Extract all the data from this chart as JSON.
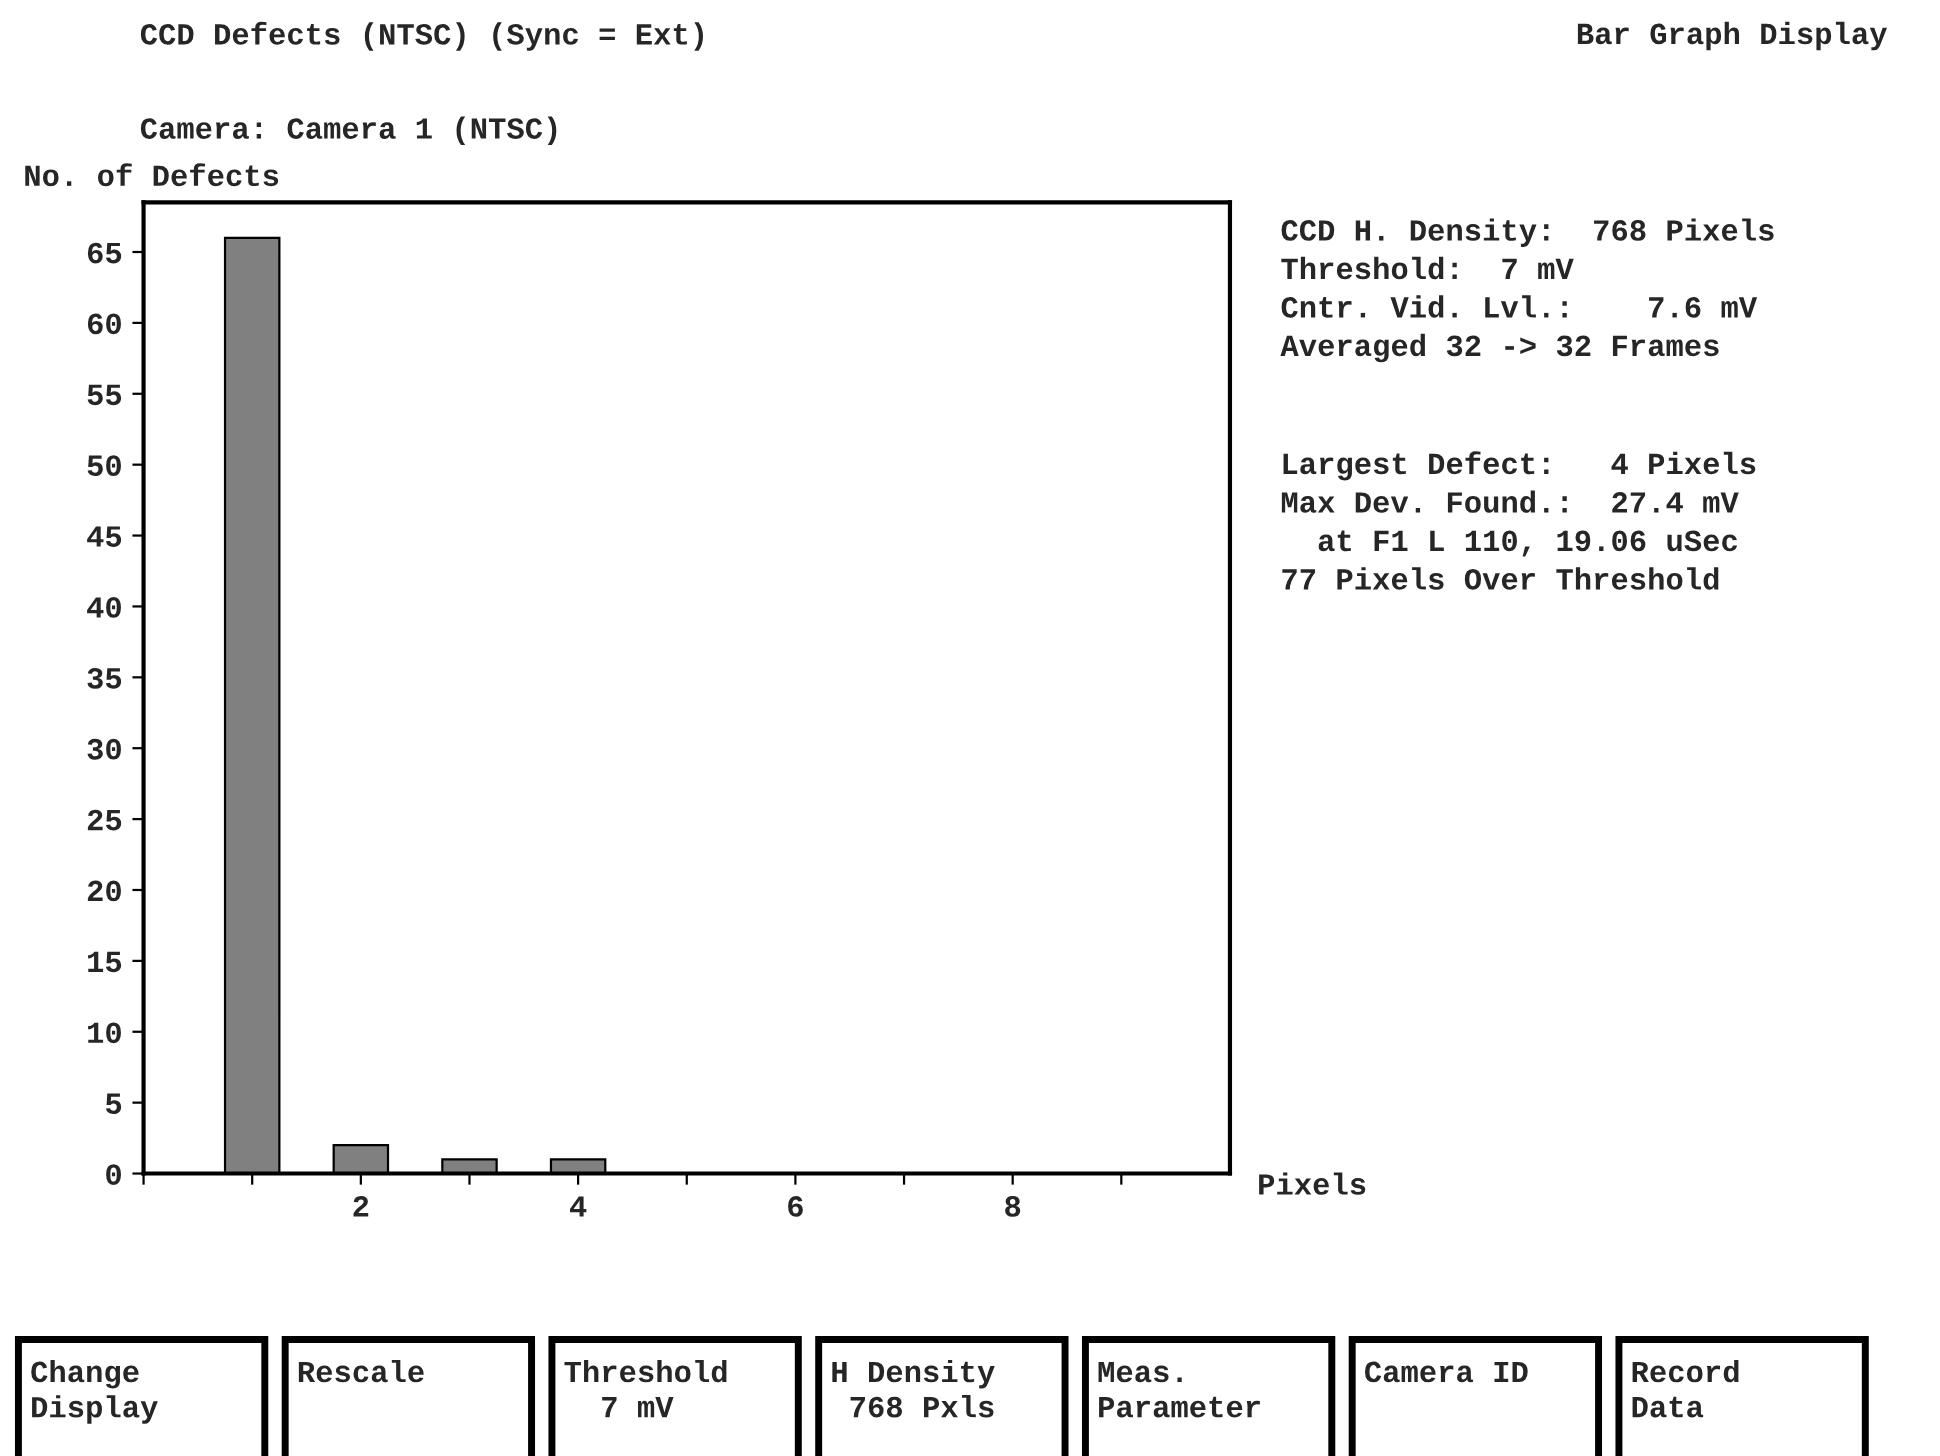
{
  "chart_data": {
    "type": "bar",
    "title": "CCD Defects (NTSC) (Sync = Ext)",
    "subtitle": "Camera: Camera 1 (NTSC)",
    "ylabel": "No. of Defects",
    "xlabel": "Pixels",
    "x": [
      1,
      2,
      3,
      4
    ],
    "values": [
      66,
      2,
      1,
      1
    ],
    "color": "#808080",
    "xlim": [
      0,
      10
    ],
    "xticks": [
      {
        "value": 0,
        "label": null
      },
      {
        "value": 1,
        "label": null
      },
      2,
      {
        "value": 3,
        "label": null
      },
      4,
      {
        "value": 5,
        "label": null
      },
      6,
      {
        "value": 7,
        "label": null
      },
      8,
      {
        "value": 9,
        "label": null
      }
    ],
    "ylim": [
      0,
      68.5
    ],
    "yticks": [
      0,
      5,
      10,
      15,
      20,
      25,
      30,
      35,
      40,
      45,
      50,
      55,
      60,
      65
    ],
    "grid": false,
    "legend": false,
    "annotations": [
      "Bar Graph Display",
      "CCD H. Density:  768 Pixels\nThreshold:  7 mV\nCntr. Vid. Lvl.:    7.6 mV\nAveraged 32 -> 32 Frames",
      "Largest Defect:   4 Pixels\nMax Dev. Found.:  27.4 mV\n  at F1 L 110, 19.06 uSec\n77 Pixels Over Threshold",
      "Change\nDisplay",
      "Rescale",
      "Threshold\n  7 mV",
      "H Density\n 768 Pxls",
      "Meas.\nParameter",
      "Camera ID",
      "Record\nData"
    ]
  }
}
